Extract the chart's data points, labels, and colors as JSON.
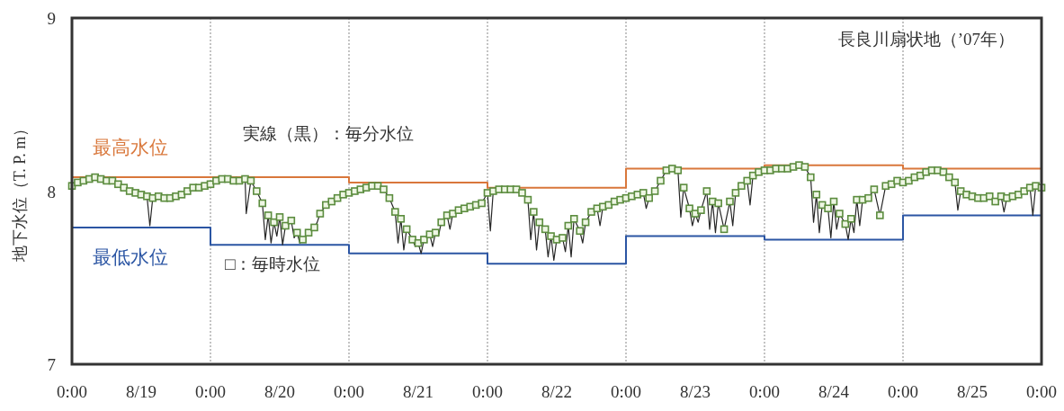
{
  "chart_data": {
    "type": "line",
    "ylabel": "地下水位（T. P. m）",
    "xlim": [
      "2007-08-19T00:00",
      "2007-08-26T00:00"
    ],
    "ylim": [
      7,
      9
    ],
    "yticks": [
      7,
      8,
      9
    ],
    "xticks": [
      {
        "value": "2007-08-19T00:00",
        "label": "0:00"
      },
      {
        "value": "2007-08-19T12:00",
        "label": "8/19"
      },
      {
        "value": "2007-08-20T00:00",
        "label": "0:00"
      },
      {
        "value": "2007-08-20T12:00",
        "label": "8/20"
      },
      {
        "value": "2007-08-21T00:00",
        "label": "0:00"
      },
      {
        "value": "2007-08-21T12:00",
        "label": "8/21"
      },
      {
        "value": "2007-08-22T00:00",
        "label": "0:00"
      },
      {
        "value": "2007-08-22T12:00",
        "label": "8/22"
      },
      {
        "value": "2007-08-23T00:00",
        "label": "0:00"
      },
      {
        "value": "2007-08-23T12:00",
        "label": "8/23"
      },
      {
        "value": "2007-08-24T00:00",
        "label": "0:00"
      },
      {
        "value": "2007-08-24T12:00",
        "label": "8/24"
      },
      {
        "value": "2007-08-25T00:00",
        "label": "0:00"
      },
      {
        "value": "2007-08-25T12:00",
        "label": "8/25"
      },
      {
        "value": "2007-08-26T00:00",
        "label": "0:00"
      }
    ],
    "grid": "x",
    "annotations": [
      "実線（黒）：毎分水位",
      "□：毎時水位",
      "長良川扇状地（’07年）"
    ],
    "series": [
      {
        "name": "最高水位",
        "type": "step",
        "color": "#d9773b",
        "x": [
          "2007-08-19T00:00",
          "2007-08-20T00:00",
          "2007-08-21T00:00",
          "2007-08-22T00:00",
          "2007-08-23T00:00",
          "2007-08-24T00:00",
          "2007-08-25T00:00",
          "2007-08-26T00:00"
        ],
        "values": [
          8.08,
          8.08,
          8.05,
          8.02,
          8.13,
          8.15,
          8.13,
          8.13
        ]
      },
      {
        "name": "最低水位",
        "type": "step",
        "color": "#2b55a3",
        "x": [
          "2007-08-19T00:00",
          "2007-08-20T00:00",
          "2007-08-21T00:00",
          "2007-08-22T00:00",
          "2007-08-23T00:00",
          "2007-08-24T00:00",
          "2007-08-25T00:00",
          "2007-08-26T00:00"
        ],
        "values": [
          7.79,
          7.69,
          7.64,
          7.58,
          7.74,
          7.72,
          7.86,
          7.86
        ]
      },
      {
        "color": "#262626",
        "line_style": "solid",
        "x": [
          "2007-08-19T00:00",
          "2007-08-19T01:00",
          "2007-08-19T02:00",
          "2007-08-19T03:00",
          "2007-08-19T04:00",
          "2007-08-19T05:00",
          "2007-08-19T06:00",
          "2007-08-19T07:00",
          "2007-08-19T08:00",
          "2007-08-19T09:00",
          "2007-08-19T10:00",
          "2007-08-19T11:00",
          "2007-08-19T12:00",
          "2007-08-19T13:00",
          "2007-08-19T13:30",
          "2007-08-19T14:00",
          "2007-08-19T15:00",
          "2007-08-19T16:00",
          "2007-08-19T17:00",
          "2007-08-19T18:00",
          "2007-08-19T19:00",
          "2007-08-19T20:00",
          "2007-08-19T21:00",
          "2007-08-19T22:00",
          "2007-08-19T23:00",
          "2007-08-20T00:00",
          "2007-08-20T01:00",
          "2007-08-20T02:00",
          "2007-08-20T03:00",
          "2007-08-20T04:00",
          "2007-08-20T05:00",
          "2007-08-20T06:00",
          "2007-08-20T06:12",
          "2007-08-20T07:00",
          "2007-08-20T08:00",
          "2007-08-20T09:00",
          "2007-08-20T09:30",
          "2007-08-20T10:00",
          "2007-08-20T10:30",
          "2007-08-20T11:00",
          "2007-08-20T11:30",
          "2007-08-20T12:00",
          "2007-08-20T12:30",
          "2007-08-20T13:00",
          "2007-08-20T14:00",
          "2007-08-20T14:30",
          "2007-08-20T15:00",
          "2007-08-20T15:30",
          "2007-08-20T16:00",
          "2007-08-20T16:30",
          "2007-08-20T17:00",
          "2007-08-20T18:00",
          "2007-08-20T18:30",
          "2007-08-20T19:00",
          "2007-08-20T20:00",
          "2007-08-20T21:00",
          "2007-08-20T22:00",
          "2007-08-20T23:00",
          "2007-08-21T00:00",
          "2007-08-21T01:00",
          "2007-08-21T02:00",
          "2007-08-21T03:00",
          "2007-08-21T04:00",
          "2007-08-21T05:00",
          "2007-08-21T06:00",
          "2007-08-21T07:00",
          "2007-08-21T08:00",
          "2007-08-21T08:30",
          "2007-08-21T09:00",
          "2007-08-21T09:30",
          "2007-08-21T10:00",
          "2007-08-21T11:00",
          "2007-08-21T11:30",
          "2007-08-21T12:00",
          "2007-08-21T12:30",
          "2007-08-21T13:00",
          "2007-08-21T14:00",
          "2007-08-21T14:30",
          "2007-08-21T15:00",
          "2007-08-21T15:30",
          "2007-08-21T16:00",
          "2007-08-21T17:00",
          "2007-08-21T17:30",
          "2007-08-21T18:00",
          "2007-08-21T19:00",
          "2007-08-21T20:00",
          "2007-08-21T21:00",
          "2007-08-21T22:00",
          "2007-08-21T23:00",
          "2007-08-22T00:00",
          "2007-08-22T00:30",
          "2007-08-22T01:00",
          "2007-08-22T02:00",
          "2007-08-22T03:00",
          "2007-08-22T04:00",
          "2007-08-22T05:00",
          "2007-08-22T06:00",
          "2007-08-22T07:00",
          "2007-08-22T07:30",
          "2007-08-22T08:00",
          "2007-08-22T08:30",
          "2007-08-22T09:00",
          "2007-08-22T10:00",
          "2007-08-22T10:30",
          "2007-08-22T11:00",
          "2007-08-22T11:30",
          "2007-08-22T12:00",
          "2007-08-22T13:00",
          "2007-08-22T13:30",
          "2007-08-22T14:00",
          "2007-08-22T14:30",
          "2007-08-22T15:00",
          "2007-08-22T16:00",
          "2007-08-22T16:30",
          "2007-08-22T17:00",
          "2007-08-22T18:00",
          "2007-08-22T19:00",
          "2007-08-22T19:30",
          "2007-08-22T20:00",
          "2007-08-22T21:00",
          "2007-08-22T22:00",
          "2007-08-22T23:00",
          "2007-08-23T00:00",
          "2007-08-23T01:00",
          "2007-08-23T02:00",
          "2007-08-23T03:00",
          "2007-08-23T03:30",
          "2007-08-23T04:00",
          "2007-08-23T05:00",
          "2007-08-23T06:00",
          "2007-08-23T07:00",
          "2007-08-23T08:00",
          "2007-08-23T09:00",
          "2007-08-23T09:30",
          "2007-08-23T10:00",
          "2007-08-23T11:00",
          "2007-08-23T11:30",
          "2007-08-23T12:00",
          "2007-08-23T12:30",
          "2007-08-23T13:00",
          "2007-08-23T14:00",
          "2007-08-23T14:30",
          "2007-08-23T15:00",
          "2007-08-23T15:30",
          "2007-08-23T16:00",
          "2007-08-23T17:00",
          "2007-08-23T18:00",
          "2007-08-23T18:30",
          "2007-08-23T19:00",
          "2007-08-23T20:00",
          "2007-08-23T21:00",
          "2007-08-23T21:30",
          "2007-08-23T22:00",
          "2007-08-23T23:00",
          "2007-08-24T00:00",
          "2007-08-24T01:00",
          "2007-08-24T02:00",
          "2007-08-24T03:00",
          "2007-08-24T04:00",
          "2007-08-24T05:00",
          "2007-08-24T06:00",
          "2007-08-24T07:00",
          "2007-08-24T08:00",
          "2007-08-24T08:30",
          "2007-08-24T09:00",
          "2007-08-24T09:30",
          "2007-08-24T10:00",
          "2007-08-24T11:00",
          "2007-08-24T11:30",
          "2007-08-24T12:00",
          "2007-08-24T12:30",
          "2007-08-24T13:00",
          "2007-08-24T14:00",
          "2007-08-24T14:30",
          "2007-08-24T15:00",
          "2007-08-24T15:30",
          "2007-08-24T16:00",
          "2007-08-24T16:30",
          "2007-08-24T17:00",
          "2007-08-24T18:00",
          "2007-08-24T19:00",
          "2007-08-24T20:00",
          "2007-08-24T21:00",
          "2007-08-24T22:00",
          "2007-08-24T23:00",
          "2007-08-25T00:00",
          "2007-08-25T01:00",
          "2007-08-25T02:00",
          "2007-08-25T03:00",
          "2007-08-25T04:00",
          "2007-08-25T05:00",
          "2007-08-25T06:00",
          "2007-08-25T07:00",
          "2007-08-25T08:00",
          "2007-08-25T09:00",
          "2007-08-25T09:30",
          "2007-08-25T10:00",
          "2007-08-25T11:00",
          "2007-08-25T12:00",
          "2007-08-25T13:00",
          "2007-08-25T14:00",
          "2007-08-25T15:00",
          "2007-08-25T16:00",
          "2007-08-25T17:00",
          "2007-08-25T17:30",
          "2007-08-25T18:00",
          "2007-08-25T19:00",
          "2007-08-25T20:00",
          "2007-08-25T21:00",
          "2007-08-25T22:00",
          "2007-08-25T22:30",
          "2007-08-25T23:00",
          "2007-08-26T00:00"
        ],
        "values": [
          8.03,
          8.05,
          8.06,
          8.07,
          8.08,
          8.07,
          8.06,
          8.06,
          8.04,
          8.02,
          8.0,
          7.99,
          7.98,
          7.97,
          7.8,
          7.96,
          7.97,
          7.96,
          7.96,
          7.97,
          7.98,
          8.0,
          8.02,
          8.02,
          8.03,
          8.04,
          8.06,
          8.07,
          8.07,
          8.06,
          8.06,
          8.07,
          7.87,
          8.06,
          8.0,
          7.93,
          7.72,
          7.86,
          7.7,
          7.82,
          7.74,
          7.85,
          7.69,
          7.8,
          7.83,
          7.73,
          7.76,
          7.7,
          7.72,
          7.74,
          7.76,
          7.79,
          7.82,
          7.87,
          7.92,
          7.94,
          7.96,
          7.98,
          7.99,
          8.0,
          8.01,
          8.02,
          8.03,
          8.03,
          8.01,
          7.96,
          7.88,
          7.7,
          7.84,
          7.66,
          7.78,
          7.72,
          7.68,
          7.7,
          7.64,
          7.72,
          7.75,
          7.68,
          7.76,
          7.74,
          7.82,
          7.86,
          7.78,
          7.87,
          7.89,
          7.9,
          7.91,
          7.92,
          7.93,
          7.99,
          7.77,
          8.0,
          8.01,
          8.01,
          8.01,
          8.01,
          7.99,
          7.95,
          7.72,
          7.88,
          7.66,
          7.82,
          7.78,
          7.62,
          7.74,
          7.6,
          7.72,
          7.73,
          7.65,
          7.8,
          7.62,
          7.84,
          7.77,
          7.7,
          7.82,
          7.88,
          7.9,
          7.8,
          7.91,
          7.92,
          7.94,
          7.95,
          7.96,
          7.97,
          7.98,
          7.99,
          7.9,
          7.96,
          8.0,
          8.06,
          8.12,
          8.13,
          8.12,
          7.85,
          8.02,
          7.9,
          7.8,
          7.87,
          7.82,
          7.89,
          8.0,
          7.78,
          7.94,
          7.76,
          7.93,
          7.78,
          7.94,
          7.8,
          7.99,
          8.03,
          8.06,
          7.92,
          8.09,
          8.11,
          8.12,
          8.12,
          8.13,
          8.13,
          8.13,
          8.14,
          8.15,
          8.14,
          8.08,
          7.82,
          7.98,
          7.76,
          7.92,
          7.9,
          7.73,
          7.94,
          7.78,
          7.87,
          7.81,
          7.72,
          7.84,
          7.76,
          7.95,
          7.8,
          7.95,
          7.96,
          8.01,
          7.86,
          8.03,
          8.04,
          8.06,
          8.05,
          8.06,
          8.08,
          8.09,
          8.11,
          8.12,
          8.12,
          8.11,
          8.08,
          8.05,
          7.89,
          8.0,
          7.98,
          7.97,
          7.96,
          7.96,
          7.97,
          7.94,
          7.97,
          7.88,
          7.96,
          7.97,
          7.98,
          8.0,
          8.02,
          7.86,
          8.03,
          8.02
        ]
      },
      {
        "type": "scatter",
        "color": "#5b8c3e",
        "marker": "square",
        "x": [
          "2007-08-19T00:00",
          "2007-08-19T01:00",
          "2007-08-19T02:00",
          "2007-08-19T03:00",
          "2007-08-19T04:00",
          "2007-08-19T05:00",
          "2007-08-19T06:00",
          "2007-08-19T07:00",
          "2007-08-19T08:00",
          "2007-08-19T09:00",
          "2007-08-19T10:00",
          "2007-08-19T11:00",
          "2007-08-19T12:00",
          "2007-08-19T13:00",
          "2007-08-19T14:00",
          "2007-08-19T15:00",
          "2007-08-19T16:00",
          "2007-08-19T17:00",
          "2007-08-19T18:00",
          "2007-08-19T19:00",
          "2007-08-19T20:00",
          "2007-08-19T21:00",
          "2007-08-19T22:00",
          "2007-08-19T23:00",
          "2007-08-20T00:00",
          "2007-08-20T01:00",
          "2007-08-20T02:00",
          "2007-08-20T03:00",
          "2007-08-20T04:00",
          "2007-08-20T05:00",
          "2007-08-20T06:00",
          "2007-08-20T07:00",
          "2007-08-20T08:00",
          "2007-08-20T09:00",
          "2007-08-20T10:00",
          "2007-08-20T11:00",
          "2007-08-20T12:00",
          "2007-08-20T13:00",
          "2007-08-20T14:00",
          "2007-08-20T15:00",
          "2007-08-20T16:00",
          "2007-08-20T17:00",
          "2007-08-20T18:00",
          "2007-08-20T19:00",
          "2007-08-20T20:00",
          "2007-08-20T21:00",
          "2007-08-20T22:00",
          "2007-08-20T23:00",
          "2007-08-21T00:00",
          "2007-08-21T01:00",
          "2007-08-21T02:00",
          "2007-08-21T03:00",
          "2007-08-21T04:00",
          "2007-08-21T05:00",
          "2007-08-21T06:00",
          "2007-08-21T07:00",
          "2007-08-21T08:00",
          "2007-08-21T09:00",
          "2007-08-21T10:00",
          "2007-08-21T11:00",
          "2007-08-21T12:00",
          "2007-08-21T13:00",
          "2007-08-21T14:00",
          "2007-08-21T15:00",
          "2007-08-21T16:00",
          "2007-08-21T17:00",
          "2007-08-21T18:00",
          "2007-08-21T19:00",
          "2007-08-21T20:00",
          "2007-08-21T21:00",
          "2007-08-21T22:00",
          "2007-08-21T23:00",
          "2007-08-22T00:00",
          "2007-08-22T01:00",
          "2007-08-22T02:00",
          "2007-08-22T03:00",
          "2007-08-22T04:00",
          "2007-08-22T05:00",
          "2007-08-22T06:00",
          "2007-08-22T07:00",
          "2007-08-22T08:00",
          "2007-08-22T09:00",
          "2007-08-22T10:00",
          "2007-08-22T11:00",
          "2007-08-22T12:00",
          "2007-08-22T13:00",
          "2007-08-22T14:00",
          "2007-08-22T15:00",
          "2007-08-22T16:00",
          "2007-08-22T17:00",
          "2007-08-22T18:00",
          "2007-08-22T19:00",
          "2007-08-22T20:00",
          "2007-08-22T21:00",
          "2007-08-22T22:00",
          "2007-08-22T23:00",
          "2007-08-23T00:00",
          "2007-08-23T01:00",
          "2007-08-23T02:00",
          "2007-08-23T03:00",
          "2007-08-23T04:00",
          "2007-08-23T05:00",
          "2007-08-23T06:00",
          "2007-08-23T07:00",
          "2007-08-23T08:00",
          "2007-08-23T09:00",
          "2007-08-23T10:00",
          "2007-08-23T11:00",
          "2007-08-23T12:00",
          "2007-08-23T13:00",
          "2007-08-23T14:00",
          "2007-08-23T15:00",
          "2007-08-23T16:00",
          "2007-08-23T17:00",
          "2007-08-23T18:00",
          "2007-08-23T19:00",
          "2007-08-23T20:00",
          "2007-08-23T21:00",
          "2007-08-23T22:00",
          "2007-08-23T23:00",
          "2007-08-24T00:00",
          "2007-08-24T01:00",
          "2007-08-24T02:00",
          "2007-08-24T03:00",
          "2007-08-24T04:00",
          "2007-08-24T05:00",
          "2007-08-24T06:00",
          "2007-08-24T07:00",
          "2007-08-24T08:00",
          "2007-08-24T09:00",
          "2007-08-24T10:00",
          "2007-08-24T11:00",
          "2007-08-24T12:00",
          "2007-08-24T13:00",
          "2007-08-24T14:00",
          "2007-08-24T15:00",
          "2007-08-24T16:00",
          "2007-08-24T17:00",
          "2007-08-24T18:00",
          "2007-08-24T19:00",
          "2007-08-24T20:00",
          "2007-08-24T21:00",
          "2007-08-24T22:00",
          "2007-08-24T23:00",
          "2007-08-25T00:00",
          "2007-08-25T01:00",
          "2007-08-25T02:00",
          "2007-08-25T03:00",
          "2007-08-25T04:00",
          "2007-08-25T05:00",
          "2007-08-25T06:00",
          "2007-08-25T07:00",
          "2007-08-25T08:00",
          "2007-08-25T09:00",
          "2007-08-25T10:00",
          "2007-08-25T11:00",
          "2007-08-25T12:00",
          "2007-08-25T13:00",
          "2007-08-25T14:00",
          "2007-08-25T15:00",
          "2007-08-25T16:00",
          "2007-08-25T17:00",
          "2007-08-25T18:00",
          "2007-08-25T19:00",
          "2007-08-25T20:00",
          "2007-08-25T21:00",
          "2007-08-25T22:00",
          "2007-08-25T23:00",
          "2007-08-26T00:00"
        ],
        "values": [
          8.03,
          8.05,
          8.06,
          8.07,
          8.08,
          8.07,
          8.06,
          8.06,
          8.04,
          8.02,
          8.0,
          7.99,
          7.98,
          7.97,
          7.96,
          7.97,
          7.96,
          7.96,
          7.97,
          7.98,
          8.0,
          8.02,
          8.02,
          8.03,
          8.04,
          8.06,
          8.07,
          8.07,
          8.06,
          8.06,
          8.07,
          8.06,
          8.0,
          7.93,
          7.86,
          7.82,
          7.85,
          7.8,
          7.83,
          7.76,
          7.72,
          7.76,
          7.79,
          7.87,
          7.92,
          7.94,
          7.96,
          7.98,
          7.99,
          8.0,
          8.01,
          8.02,
          8.03,
          8.03,
          8.01,
          7.96,
          7.88,
          7.84,
          7.78,
          7.72,
          7.7,
          7.72,
          7.75,
          7.76,
          7.82,
          7.86,
          7.87,
          7.89,
          7.9,
          7.91,
          7.92,
          7.93,
          7.99,
          8.0,
          8.01,
          8.01,
          8.01,
          8.01,
          7.99,
          7.95,
          7.88,
          7.82,
          7.78,
          7.74,
          7.72,
          7.73,
          7.8,
          7.84,
          7.77,
          7.82,
          7.88,
          7.9,
          7.91,
          7.92,
          7.94,
          7.95,
          7.96,
          7.97,
          7.98,
          7.99,
          7.96,
          8.0,
          8.06,
          8.12,
          8.13,
          8.12,
          8.02,
          7.9,
          7.87,
          7.89,
          8.0,
          7.94,
          7.93,
          7.78,
          7.94,
          7.99,
          8.03,
          8.06,
          8.09,
          8.11,
          8.12,
          8.12,
          8.13,
          8.13,
          8.13,
          8.14,
          8.15,
          8.14,
          8.08,
          7.98,
          7.92,
          7.9,
          7.94,
          7.87,
          7.81,
          7.84,
          7.95,
          7.95,
          7.96,
          8.01,
          7.86,
          8.03,
          8.04,
          8.06,
          8.05,
          8.06,
          8.08,
          8.09,
          8.11,
          8.12,
          8.12,
          8.11,
          8.08,
          8.05,
          8.0,
          7.98,
          7.97,
          7.96,
          7.96,
          7.97,
          7.94,
          7.97,
          7.96,
          7.97,
          7.98,
          8.0,
          8.02,
          8.03,
          8.02
        ]
      }
    ]
  }
}
